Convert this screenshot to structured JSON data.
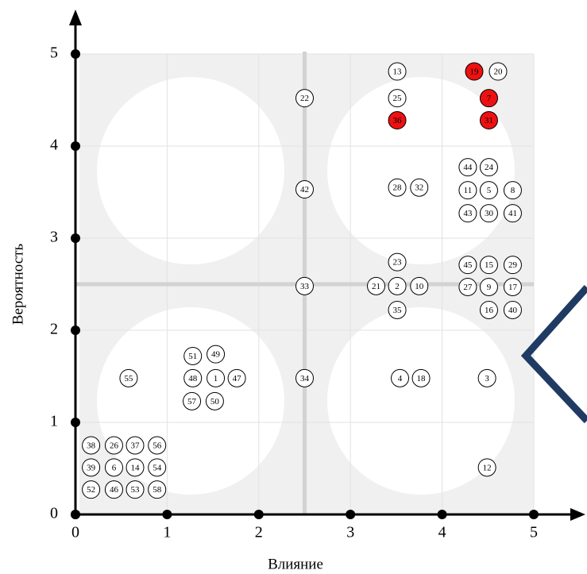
{
  "chart_data": {
    "type": "scatter",
    "xlabel": "Влияние",
    "ylabel": "Вероятность",
    "xlim": [
      0,
      5
    ],
    "ylim": [
      0,
      5
    ],
    "xticks": [
      0,
      1,
      2,
      3,
      4,
      5
    ],
    "yticks": [
      0,
      1,
      2,
      3,
      4,
      5
    ],
    "x_divider": 2.5,
    "y_divider": 2.5,
    "labels": [
      "13",
      "19",
      "20",
      "22",
      "25",
      "7",
      "36",
      "31",
      "44",
      "24",
      "42",
      "28",
      "32",
      "11",
      "5",
      "8",
      "43",
      "30",
      "41",
      "23",
      "45",
      "15",
      "29",
      "33",
      "21",
      "2",
      "10",
      "27",
      "9",
      "17",
      "35",
      "16",
      "40",
      "51",
      "49",
      "55",
      "48",
      "1",
      "47",
      "34",
      "4",
      "18",
      "3",
      "57",
      "50",
      "38",
      "26",
      "37",
      "56",
      "39",
      "6",
      "14",
      "54",
      "52",
      "46",
      "53",
      "58",
      "12"
    ],
    "x": [
      3.51,
      4.35,
      4.61,
      2.5,
      3.51,
      4.51,
      3.51,
      4.51,
      4.28,
      4.51,
      2.5,
      3.51,
      3.75,
      4.28,
      4.51,
      4.77,
      4.28,
      4.51,
      4.77,
      3.51,
      4.28,
      4.51,
      4.77,
      2.5,
      3.28,
      3.51,
      3.75,
      4.28,
      4.51,
      4.77,
      3.51,
      4.51,
      4.77,
      1.28,
      1.53,
      0.58,
      1.28,
      1.53,
      1.76,
      2.5,
      3.54,
      3.77,
      4.49,
      1.27,
      1.52,
      0.17,
      0.42,
      0.65,
      0.89,
      0.17,
      0.42,
      0.65,
      0.89,
      0.17,
      0.42,
      0.65,
      0.89,
      4.49
    ],
    "values": [
      4.81,
      4.81,
      4.81,
      4.52,
      4.52,
      4.52,
      4.28,
      4.28,
      3.77,
      3.77,
      3.53,
      3.55,
      3.55,
      3.52,
      3.52,
      3.52,
      3.27,
      3.27,
      3.27,
      2.74,
      2.71,
      2.71,
      2.71,
      2.48,
      2.48,
      2.48,
      2.48,
      2.47,
      2.47,
      2.47,
      2.22,
      2.22,
      2.22,
      1.72,
      1.74,
      1.48,
      1.48,
      1.48,
      1.48,
      1.48,
      1.48,
      1.48,
      1.48,
      1.23,
      1.23,
      0.75,
      0.75,
      0.75,
      0.75,
      0.51,
      0.51,
      0.51,
      0.51,
      0.27,
      0.27,
      0.27,
      0.27,
      0.51
    ],
    "point_colors": [
      "#ffffff",
      "#ee1111",
      "#ffffff",
      "#ffffff",
      "#ffffff",
      "#ee1111",
      "#ee1111",
      "#ee1111",
      "#ffffff",
      "#ffffff",
      "#ffffff",
      "#ffffff",
      "#ffffff",
      "#ffffff",
      "#ffffff",
      "#ffffff",
      "#ffffff",
      "#ffffff",
      "#ffffff",
      "#ffffff",
      "#ffffff",
      "#ffffff",
      "#ffffff",
      "#ffffff",
      "#ffffff",
      "#ffffff",
      "#ffffff",
      "#ffffff",
      "#ffffff",
      "#ffffff",
      "#ffffff",
      "#ffffff",
      "#ffffff",
      "#ffffff",
      "#ffffff",
      "#ffffff",
      "#ffffff",
      "#ffffff",
      "#ffffff",
      "#ffffff",
      "#ffffff",
      "#ffffff",
      "#ffffff",
      "#ffffff",
      "#ffffff",
      "#ffffff",
      "#ffffff",
      "#ffffff",
      "#ffffff",
      "#ffffff",
      "#ffffff",
      "#ffffff",
      "#ffffff",
      "#ffffff",
      "#ffffff",
      "#ffffff",
      "#ffffff",
      "#ffffff"
    ]
  }
}
